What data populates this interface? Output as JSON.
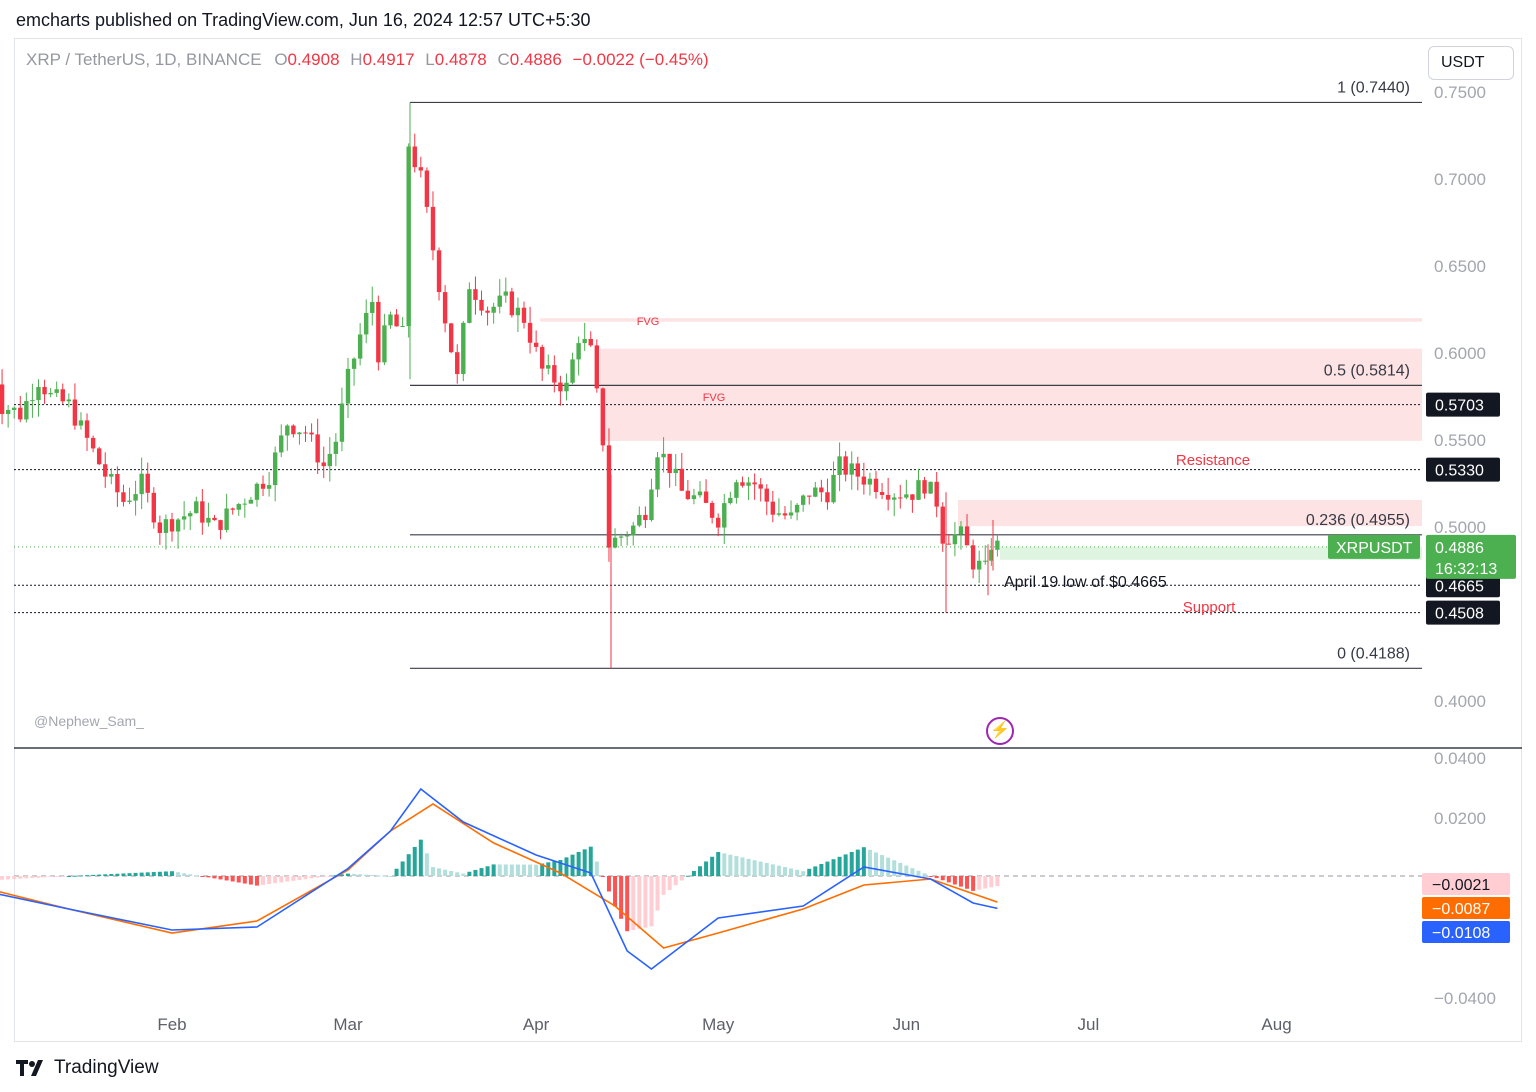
{
  "header": {
    "publisher": "emcharts published on TradingView.com, Jun 16, 2024 12:57 UTC+5:30"
  },
  "legend": {
    "symbol": "XRP / TetherUS, 1D, BINANCE",
    "o_label": "O",
    "o": "0.4908",
    "h_label": "H",
    "h": "0.4917",
    "l_label": "L",
    "l": "0.4878",
    "c_label": "C",
    "c": "0.4886",
    "change": "−0.0022 (−0.45%)"
  },
  "currency_button": "USDT",
  "watermark": "@Nephew_Sam_",
  "brand": "TradingView",
  "colors": {
    "up": "#4caf50",
    "down": "#f23645",
    "macd": "#2962ff",
    "signal": "#ff6d00",
    "hist_up_strong": "#26a69a",
    "hist_up_weak": "#b2dfdb",
    "hist_down_strong": "#ff5252",
    "hist_down_weak": "#ffcdd2",
    "zone": "#fde3e3",
    "label_bg": "#131722"
  },
  "chart_data": [
    {
      "type": "candlestick",
      "title": "XRP / TetherUS, 1D, BINANCE",
      "x_months": [
        "Feb",
        "Mar",
        "Apr",
        "May",
        "Jun",
        "Jul",
        "Aug"
      ],
      "y_ticks": [
        "0.7500",
        "0.7000",
        "0.6500",
        "0.6000",
        "0.5500",
        "0.5000",
        "0.4000"
      ],
      "ylim": [
        0.39,
        0.76
      ],
      "close_path": [
        {
          "d": "2024-01-01",
          "v": 0.615
        },
        {
          "d": "2024-01-04",
          "v": 0.57
        },
        {
          "d": "2024-01-07",
          "v": 0.565
        },
        {
          "d": "2024-01-10",
          "v": 0.585
        },
        {
          "d": "2024-01-12",
          "v": 0.575
        },
        {
          "d": "2024-01-15",
          "v": 0.57
        },
        {
          "d": "2024-01-18",
          "v": 0.55
        },
        {
          "d": "2024-01-21",
          "v": 0.53
        },
        {
          "d": "2024-01-24",
          "v": 0.515
        },
        {
          "d": "2024-01-27",
          "v": 0.525
        },
        {
          "d": "2024-01-30",
          "v": 0.5
        },
        {
          "d": "2024-02-02",
          "v": 0.505
        },
        {
          "d": "2024-02-05",
          "v": 0.51
        },
        {
          "d": "2024-02-08",
          "v": 0.5
        },
        {
          "d": "2024-02-11",
          "v": 0.51
        },
        {
          "d": "2024-02-14",
          "v": 0.52
        },
        {
          "d": "2024-02-17",
          "v": 0.53
        },
        {
          "d": "2024-02-20",
          "v": 0.56
        },
        {
          "d": "2024-02-23",
          "v": 0.555
        },
        {
          "d": "2024-02-26",
          "v": 0.535
        },
        {
          "d": "2024-02-28",
          "v": 0.55
        },
        {
          "d": "2024-03-01",
          "v": 0.585
        },
        {
          "d": "2024-03-03",
          "v": 0.61
        },
        {
          "d": "2024-03-05",
          "v": 0.63
        },
        {
          "d": "2024-03-06",
          "v": 0.6
        },
        {
          "d": "2024-03-08",
          "v": 0.62
        },
        {
          "d": "2024-03-10",
          "v": 0.61
        },
        {
          "d": "2024-03-11",
          "v": 0.72
        },
        {
          "d": "2024-03-13",
          "v": 0.7
        },
        {
          "d": "2024-03-15",
          "v": 0.66
        },
        {
          "d": "2024-03-17",
          "v": 0.62
        },
        {
          "d": "2024-03-19",
          "v": 0.585
        },
        {
          "d": "2024-03-21",
          "v": 0.64
        },
        {
          "d": "2024-03-24",
          "v": 0.625
        },
        {
          "d": "2024-03-27",
          "v": 0.63
        },
        {
          "d": "2024-03-30",
          "v": 0.62
        },
        {
          "d": "2024-04-02",
          "v": 0.59
        },
        {
          "d": "2024-04-04",
          "v": 0.585
        },
        {
          "d": "2024-04-06",
          "v": 0.58
        },
        {
          "d": "2024-04-08",
          "v": 0.61
        },
        {
          "d": "2024-04-10",
          "v": 0.6
        },
        {
          "d": "2024-04-12",
          "v": 0.55
        },
        {
          "d": "2024-04-13",
          "v": 0.49
        },
        {
          "d": "2024-04-15",
          "v": 0.495
        },
        {
          "d": "2024-04-17",
          "v": 0.5
        },
        {
          "d": "2024-04-19",
          "v": 0.51
        },
        {
          "d": "2024-04-21",
          "v": 0.545
        },
        {
          "d": "2024-04-23",
          "v": 0.535
        },
        {
          "d": "2024-04-25",
          "v": 0.52
        },
        {
          "d": "2024-04-28",
          "v": 0.515
        },
        {
          "d": "2024-05-01",
          "v": 0.505
        },
        {
          "d": "2024-05-04",
          "v": 0.53
        },
        {
          "d": "2024-05-07",
          "v": 0.525
        },
        {
          "d": "2024-05-10",
          "v": 0.51
        },
        {
          "d": "2024-05-13",
          "v": 0.505
        },
        {
          "d": "2024-05-16",
          "v": 0.52
        },
        {
          "d": "2024-05-19",
          "v": 0.52
        },
        {
          "d": "2024-05-21",
          "v": 0.535
        },
        {
          "d": "2024-05-24",
          "v": 0.53
        },
        {
          "d": "2024-05-27",
          "v": 0.525
        },
        {
          "d": "2024-05-30",
          "v": 0.52
        },
        {
          "d": "2024-06-02",
          "v": 0.52
        },
        {
          "d": "2024-06-04",
          "v": 0.525
        },
        {
          "d": "2024-06-06",
          "v": 0.515
        },
        {
          "d": "2024-06-07",
          "v": 0.495
        },
        {
          "d": "2024-06-10",
          "v": 0.495
        },
        {
          "d": "2024-06-12",
          "v": 0.48
        },
        {
          "d": "2024-06-14",
          "v": 0.475
        },
        {
          "d": "2024-06-15",
          "v": 0.4908
        },
        {
          "d": "2024-06-16",
          "v": 0.4886
        }
      ],
      "fib_levels": [
        {
          "value": 0.744,
          "label": "1 (0.7440)"
        },
        {
          "value": 0.5814,
          "label": "0.5 (0.5814)"
        },
        {
          "value": 0.4955,
          "label": "0.236 (0.4955)"
        },
        {
          "value": 0.4188,
          "label": "0 (0.4188)"
        }
      ],
      "horizontal_levels": [
        {
          "value": 0.5703,
          "label": "0.5703"
        },
        {
          "value": 0.533,
          "label": "0.5330"
        },
        {
          "value": 0.4665,
          "label": "0.4665"
        },
        {
          "value": 0.4508,
          "label": "0.4508"
        }
      ],
      "fvg_zones": [
        {
          "label": "FVG",
          "top": 0.62,
          "bottom": 0.618
        },
        {
          "label": "FVG",
          "top": 0.6025,
          "bottom": 0.5495
        },
        {
          "label": "",
          "top": 0.5155,
          "bottom": 0.5005
        }
      ],
      "annotations": {
        "resistance": "Resistance",
        "support": "Support",
        "april_low": "April 19 low of $0.4665"
      },
      "current_price": {
        "symbol": "XRPUSDT",
        "value": "0.4886",
        "countdown": "16:32:13"
      }
    },
    {
      "type": "line",
      "title": "",
      "y_ticks": [
        "0.0400",
        "0.0200",
        "−0.0400"
      ],
      "ylim": [
        -0.04,
        0.04
      ],
      "series": [
        {
          "name": "",
          "points": [
            {
              "d": "2024-01-01",
              "v": -0.005
            },
            {
              "d": "2024-01-15",
              "v": -0.011
            },
            {
              "d": "2024-02-01",
              "v": -0.018
            },
            {
              "d": "2024-02-15",
              "v": -0.017
            },
            {
              "d": "2024-03-01",
              "v": 0.0025
            },
            {
              "d": "2024-03-08",
              "v": 0.015
            },
            {
              "d": "2024-03-13",
              "v": 0.029
            },
            {
              "d": "2024-03-20",
              "v": 0.018
            },
            {
              "d": "2024-04-01",
              "v": 0.007
            },
            {
              "d": "2024-04-10",
              "v": 0.001
            },
            {
              "d": "2024-04-16",
              "v": -0.025
            },
            {
              "d": "2024-04-20",
              "v": -0.031
            },
            {
              "d": "2024-05-01",
              "v": -0.014
            },
            {
              "d": "2024-05-15",
              "v": -0.01
            },
            {
              "d": "2024-05-25",
              "v": 0.003
            },
            {
              "d": "2024-06-05",
              "v": -0.001
            },
            {
              "d": "2024-06-12",
              "v": -0.009
            },
            {
              "d": "2024-06-16",
              "v": -0.0108
            }
          ]
        },
        {
          "name": "",
          "points": [
            {
              "d": "2024-01-01",
              "v": -0.004
            },
            {
              "d": "2024-01-15",
              "v": -0.011
            },
            {
              "d": "2024-02-01",
              "v": -0.019
            },
            {
              "d": "2024-02-15",
              "v": -0.015
            },
            {
              "d": "2024-03-01",
              "v": 0.002
            },
            {
              "d": "2024-03-08",
              "v": 0.015
            },
            {
              "d": "2024-03-15",
              "v": 0.024
            },
            {
              "d": "2024-03-25",
              "v": 0.011
            },
            {
              "d": "2024-04-05",
              "v": 0.001
            },
            {
              "d": "2024-04-14",
              "v": -0.01
            },
            {
              "d": "2024-04-22",
              "v": -0.024
            },
            {
              "d": "2024-05-01",
              "v": -0.019
            },
            {
              "d": "2024-05-15",
              "v": -0.011
            },
            {
              "d": "2024-05-25",
              "v": -0.003
            },
            {
              "d": "2024-06-05",
              "v": -0.001
            },
            {
              "d": "2024-06-16",
              "v": -0.0087
            }
          ]
        }
      ],
      "histogram_last": "−0.0021",
      "value_labels": [
        "−0.0021",
        "−0.0087",
        "−0.0108"
      ]
    }
  ]
}
